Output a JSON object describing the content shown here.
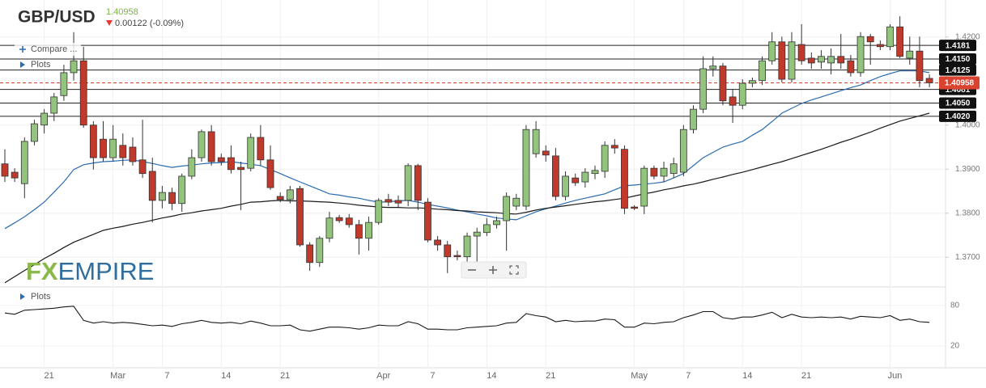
{
  "chart_data": {
    "type": "candlestick",
    "title": "GBP/USD",
    "price": 1.40958,
    "change": "0.00122 (-0.09%)",
    "controls": [
      "Compare ...",
      "Plots"
    ],
    "logo": [
      "FX",
      "EMPIRE"
    ],
    "colors": {
      "up": "#93c47d",
      "down": "#c0392b",
      "price": "#d9432f",
      "change": "#e53935",
      "price_text": "#7cb342"
    },
    "categories": [
      null,
      null,
      null,
      null,
      "21",
      null,
      null,
      null,
      null,
      null,
      null,
      "Mar",
      null,
      null,
      null,
      null,
      "7",
      null,
      null,
      null,
      null,
      null,
      "14",
      null,
      null,
      null,
      null,
      null,
      "21",
      null,
      null,
      null,
      null,
      null,
      null,
      null,
      null,
      null,
      "Apr",
      null,
      null,
      null,
      null,
      "7",
      null,
      null,
      null,
      null,
      null,
      "14",
      null,
      null,
      null,
      null,
      null,
      "21",
      null,
      null,
      null,
      null,
      null,
      null,
      null,
      null,
      "May",
      null,
      null,
      null,
      null,
      "7",
      null,
      null,
      null,
      null,
      null,
      "14",
      null,
      null,
      null,
      null,
      null,
      "21",
      null,
      null,
      null,
      null,
      null,
      null,
      null,
      null,
      "Jun",
      null,
      null,
      null,
      null
    ],
    "open": [
      1.3912,
      1.3893,
      1.3867,
      1.3963,
      1.4,
      1.4027,
      1.4067,
      1.4119,
      1.4146,
      1.4,
      1.3968,
      1.3926,
      1.3954,
      1.395,
      1.3921,
      1.3895,
      1.3829,
      1.3847,
      1.3822,
      1.3884,
      1.3926,
      1.3985,
      1.3926,
      1.3926,
      1.3904,
      1.3902,
      1.3972,
      1.3921,
      1.3838,
      1.3831,
      1.3856,
      1.3728,
      1.3688,
      1.3743,
      1.379,
      1.3789,
      1.3774,
      1.3743,
      1.3779,
      1.3831,
      1.3829,
      1.3829,
      1.3908,
      1.3825,
      1.3739,
      1.3728,
      1.3704,
      1.3701,
      1.3748,
      1.3756,
      1.3774,
      1.3783,
      1.3816,
      1.3816,
      1.3935,
      1.3941,
      1.393,
      1.3838,
      1.388,
      1.3871,
      1.389,
      1.3895,
      1.3954,
      1.3945,
      1.3814,
      1.3816,
      1.3902,
      1.3884,
      1.389,
      1.3893,
      1.399,
      1.4036,
      1.4128,
      1.4134,
      1.4064,
      1.4045,
      1.4095,
      1.4101,
      1.4146,
      1.4189,
      1.4104,
      1.4183,
      1.4152,
      1.4143,
      1.4141,
      1.4156,
      1.4146,
      1.4119,
      1.4201,
      1.4183,
      1.4178,
      1.4223,
      1.4152,
      1.4168,
      1.4106
    ],
    "high": [
      1.3945,
      1.3902,
      1.3972,
      1.4012,
      1.4036,
      1.4073,
      1.4137,
      1.4211,
      1.4178,
      1.4009,
      1.4009,
      1.4,
      1.3981,
      1.3972,
      1.4012,
      1.3926,
      1.3862,
      1.3858,
      1.389,
      1.3945,
      1.399,
      1.4,
      1.3935,
      1.3954,
      1.3917,
      1.3981,
      1.4,
      1.3954,
      1.3847,
      1.3862,
      1.3862,
      1.3734,
      1.3748,
      1.3803,
      1.3796,
      1.3798,
      1.3785,
      1.3792,
      1.3834,
      1.3844,
      1.384,
      1.3913,
      1.3912,
      1.3834,
      1.3748,
      1.3737,
      1.3715,
      1.3756,
      1.3767,
      1.3789,
      1.3792,
      1.3847,
      1.3844,
      1.4,
      1.4009,
      1.3954,
      1.3948,
      1.3895,
      1.389,
      1.3902,
      1.3908,
      1.3963,
      1.3968,
      1.3954,
      1.3818,
      1.3908,
      1.3908,
      1.3917,
      1.3926,
      1.4,
      1.4045,
      1.4156,
      1.4156,
      1.4141,
      1.4082,
      1.4104,
      1.4108,
      1.4156,
      1.4211,
      1.4201,
      1.4211,
      1.4229,
      1.4165,
      1.417,
      1.4174,
      1.4207,
      1.4159,
      1.4211,
      1.4207,
      1.4192,
      1.4229,
      1.4247,
      1.4201,
      1.4201,
      1.4115
    ],
    "low": [
      1.3871,
      1.3871,
      1.3834,
      1.3954,
      1.3981,
      1.4009,
      1.4055,
      1.4101,
      1.3994,
      1.3899,
      1.3917,
      1.3917,
      1.3908,
      1.3908,
      1.388,
      1.3779,
      1.3811,
      1.3807,
      1.3803,
      1.3877,
      1.3917,
      1.3908,
      1.3908,
      1.389,
      1.3807,
      1.3895,
      1.3908,
      1.3853,
      1.3825,
      1.3822,
      1.3724,
      1.3669,
      1.3678,
      1.3734,
      1.3778,
      1.3767,
      1.3706,
      1.3715,
      1.3774,
      1.3816,
      1.3814,
      1.3816,
      1.3807,
      1.3734,
      1.3715,
      1.3664,
      1.3693,
      1.3688,
      1.3688,
      1.3748,
      1.3765,
      1.3715,
      1.3807,
      1.3807,
      1.3926,
      1.3917,
      1.3829,
      1.3829,
      1.3862,
      1.3858,
      1.3877,
      1.388,
      1.3935,
      1.3798,
      1.3807,
      1.3798,
      1.3877,
      1.3871,
      1.388,
      1.3884,
      1.3981,
      1.4027,
      1.411,
      1.4045,
      1.4005,
      1.4036,
      1.4086,
      1.4091,
      1.4137,
      1.4097,
      1.4097,
      1.4137,
      1.4128,
      1.4128,
      1.4115,
      1.4128,
      1.411,
      1.411,
      1.4137,
      1.417,
      1.417,
      1.4152,
      1.4137,
      1.4086,
      1.4086
    ],
    "close": [
      1.3884,
      1.388,
      1.3963,
      1.4003,
      1.4027,
      1.4064,
      1.4119,
      1.4146,
      1.4,
      1.3926,
      1.3926,
      1.3968,
      1.3926,
      1.3917,
      1.389,
      1.3829,
      1.3847,
      1.3822,
      1.3884,
      1.3926,
      1.3985,
      1.3917,
      1.3917,
      1.3899,
      1.3899,
      1.3972,
      1.3921,
      1.3858,
      1.3831,
      1.3853,
      1.3728,
      1.3688,
      1.3743,
      1.3789,
      1.3783,
      1.3774,
      1.3743,
      1.3779,
      1.3829,
      1.3825,
      1.3823,
      1.3908,
      1.3829,
      1.3739,
      1.3728,
      1.3701,
      1.3701,
      1.3748,
      1.3757,
      1.3774,
      1.3783,
      1.3838,
      1.3834,
      1.399,
      1.399,
      1.3932,
      1.3838,
      1.3884,
      1.3869,
      1.3893,
      1.3897,
      1.3954,
      1.3948,
      1.3811,
      1.3811,
      1.3902,
      1.3884,
      1.3902,
      1.3912,
      1.399,
      1.4036,
      1.4128,
      1.4134,
      1.4055,
      1.4045,
      1.4095,
      1.4101,
      1.4146,
      1.4189,
      1.4104,
      1.4189,
      1.4146,
      1.4141,
      1.4156,
      1.4156,
      1.4141,
      1.4119,
      1.4201,
      1.4189,
      1.4178,
      1.4223,
      1.4156,
      1.4168,
      1.4101,
      1.4096
    ],
    "overlays": [
      {
        "color": "#2b6cb0",
        "values": [
          1.3765,
          1.3778,
          1.3792,
          1.3808,
          1.3825,
          1.3848,
          1.3871,
          1.3899,
          1.391,
          1.3914,
          1.3917,
          1.3918,
          1.392,
          1.3921,
          1.3917,
          1.3913,
          1.3908,
          1.3904,
          1.3907,
          1.3909,
          1.3912,
          1.3914,
          1.3915,
          1.3917,
          1.3914,
          1.3911,
          1.3908,
          1.3899,
          1.389,
          1.388,
          1.3871,
          1.3862,
          1.3853,
          1.3844,
          1.3841,
          1.3837,
          1.3834,
          1.3829,
          1.3825,
          1.3826,
          1.3828,
          1.3829,
          1.3825,
          1.382,
          1.3816,
          1.3812,
          1.3807,
          1.3803,
          1.3798,
          1.3794,
          1.3789,
          1.3787,
          1.3785,
          1.3794,
          1.3803,
          1.381,
          1.3816,
          1.3823,
          1.3829,
          1.3834,
          1.3839,
          1.3844,
          1.3853,
          1.3862,
          1.3864,
          1.3866,
          1.3868,
          1.3871,
          1.388,
          1.389,
          1.3908,
          1.3926,
          1.3938,
          1.395,
          1.3957,
          1.3963,
          1.3977,
          1.399,
          1.4008,
          1.4027,
          1.4038,
          1.4049,
          1.4057,
          1.4064,
          1.4071,
          1.4078,
          1.4085,
          1.4091,
          1.4101,
          1.411,
          1.4117,
          1.4123,
          1.4123,
          1.4123,
          1.4119
        ]
      },
      {
        "color": "#1a1a1a",
        "values": [
          1.3642,
          1.3656,
          1.367,
          1.3683,
          1.3697,
          1.3709,
          1.3722,
          1.3734,
          1.3743,
          1.3752,
          1.3761,
          1.3766,
          1.377,
          1.3775,
          1.3779,
          1.3784,
          1.3789,
          1.3793,
          1.3798,
          1.3801,
          1.3805,
          1.3808,
          1.3811,
          1.3816,
          1.382,
          1.3825,
          1.3826,
          1.3828,
          1.3829,
          1.3828,
          1.3828,
          1.3827,
          1.3826,
          1.3825,
          1.3823,
          1.3821,
          1.3818,
          1.3816,
          1.3814,
          1.3813,
          1.3813,
          1.3812,
          1.3812,
          1.3811,
          1.3809,
          1.3808,
          1.3806,
          1.3805,
          1.3803,
          1.3802,
          1.3801,
          1.3799,
          1.3798,
          1.3802,
          1.3807,
          1.3811,
          1.3814,
          1.3817,
          1.382,
          1.3823,
          1.3826,
          1.3828,
          1.3831,
          1.3834,
          1.3839,
          1.3844,
          1.3848,
          1.3853,
          1.3857,
          1.3862,
          1.3866,
          1.3871,
          1.3877,
          1.3882,
          1.3888,
          1.3893,
          1.3899,
          1.3905,
          1.3911,
          1.3917,
          1.3924,
          1.3931,
          1.3938,
          1.3945,
          1.3953,
          1.3961,
          1.3968,
          1.3976,
          1.3984,
          1.3993,
          1.4001,
          1.4009,
          1.4015,
          1.4021,
          1.4027
        ]
      }
    ],
    "levels": [
      {
        "value": 1.4181,
        "label": "1.4181"
      },
      {
        "value": 1.415,
        "label": "1.4150"
      },
      {
        "value": 1.4125,
        "label": "1.4125"
      },
      {
        "value": 1.4081,
        "label": "1.4081"
      },
      {
        "value": 1.405,
        "label": "1.4050"
      },
      {
        "value": 1.402,
        "label": "1.4020"
      }
    ],
    "ylim": [
      1.3638,
      1.4284
    ],
    "yticks": [
      {
        "value": 1.37,
        "label": "1.3700"
      },
      {
        "value": 1.38,
        "label": "1.3800"
      },
      {
        "value": 1.39,
        "label": "1.3900"
      },
      {
        "value": 1.4,
        "label": "1.4000"
      },
      {
        "value": 1.42,
        "label": "1.4200"
      }
    ],
    "grid": true,
    "indicator": {
      "label": "Plots",
      "color": "#1a1a1a",
      "ylim": [
        -12.4,
        106.4
      ],
      "yticks": [
        20,
        80
      ],
      "values": [
        69,
        67,
        73,
        74,
        75,
        76,
        78,
        79,
        58,
        54,
        56,
        54,
        55,
        54,
        52,
        50,
        51,
        49,
        53,
        55,
        58,
        55,
        54,
        55,
        53,
        57,
        54,
        50,
        50,
        51,
        44,
        42,
        45,
        48,
        48,
        47,
        45,
        47,
        51,
        50,
        50,
        56,
        53,
        45,
        45,
        44,
        44,
        47,
        48,
        49,
        50,
        54,
        55,
        68,
        65,
        63,
        56,
        58,
        56,
        57,
        57,
        60,
        59,
        48,
        48,
        54,
        53,
        55,
        56,
        62,
        66,
        71,
        71,
        62,
        60,
        63,
        63,
        66,
        70,
        62,
        67,
        63,
        62,
        63,
        62,
        63,
        60,
        64,
        63,
        62,
        65,
        58,
        60,
        56,
        55
      ]
    }
  }
}
